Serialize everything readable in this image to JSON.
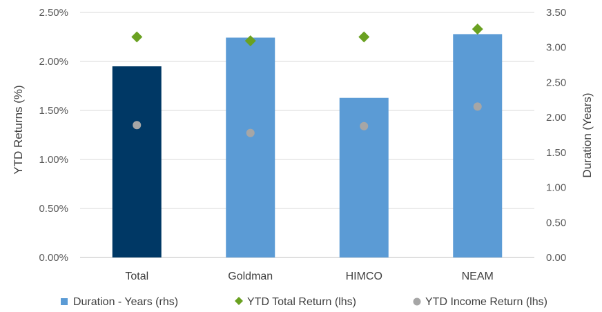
{
  "chart_data": {
    "type": "bar",
    "categories": [
      "Total",
      "Goldman",
      "HIMCO",
      "NEAM"
    ],
    "highlight_category": "Total",
    "series": [
      {
        "name": "Duration - Years (rhs)",
        "kind": "bar",
        "axis": "right",
        "color": "#5b9bd5",
        "highlight_color": "#003865",
        "values": [
          2.73,
          3.14,
          2.28,
          3.19
        ]
      },
      {
        "name": "YTD Total Return (lhs)",
        "kind": "diamond",
        "axis": "left",
        "color": "#6aa121",
        "values": [
          2.25,
          2.21,
          2.25,
          2.33
        ]
      },
      {
        "name": "YTD Income Return (lhs)",
        "kind": "circle",
        "axis": "left",
        "color": "#a6a6a6",
        "values": [
          1.35,
          1.27,
          1.34,
          1.54
        ]
      }
    ],
    "left_axis": {
      "label": "YTD Returns (%)",
      "ylim": [
        0,
        2.5
      ],
      "ticks": [
        "0.00%",
        "0.50%",
        "1.00%",
        "1.50%",
        "2.00%",
        "2.50%"
      ]
    },
    "right_axis": {
      "label": "Duration (Years)",
      "ylim": [
        0,
        3.5
      ],
      "ticks": [
        "0.00",
        "0.50",
        "1.00",
        "1.50",
        "2.00",
        "2.50",
        "3.00",
        "3.50"
      ]
    },
    "grid": true,
    "legend_position": "bottom"
  }
}
